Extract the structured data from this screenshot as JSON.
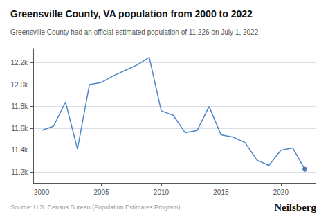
{
  "chart_data": {
    "type": "line",
    "title": "Greensville County, VA population from 2000 to 2022",
    "subtitle": "Greensville County had an official estimated population of 11,226 on July 1, 2022",
    "annotations": [
      "Source: U.S. Census Bureau (Population Estimates Program)",
      "Neilsberg"
    ],
    "x": [
      2000,
      2001,
      2002,
      2003,
      2004,
      2005,
      2006,
      2007,
      2008,
      2009,
      2010,
      2011,
      2012,
      2013,
      2014,
      2015,
      2016,
      2017,
      2018,
      2019,
      2020,
      2021,
      2022
    ],
    "series": [
      {
        "type": "line",
        "color": "#4a86c8",
        "values": [
          11580,
          11620,
          11840,
          11410,
          12000,
          12020,
          12080,
          12130,
          12180,
          12250,
          11760,
          11720,
          11560,
          11580,
          11800,
          11540,
          11520,
          11470,
          11310,
          11260,
          11400,
          11420,
          11226
        ]
      },
      {
        "type": "scatter",
        "color": "#2f5fa5",
        "marker": "circle",
        "x": [
          2022
        ],
        "values": [
          11226
        ]
      }
    ],
    "xlim": [
      1999.3,
      2022.9
    ],
    "xticks": [
      2000,
      2005,
      2010,
      2015,
      2020
    ],
    "ylim": [
      11100,
      12330
    ],
    "yticks": [
      {
        "value": 11200,
        "label": "11.2k"
      },
      {
        "value": 11400,
        "label": "11.4k"
      },
      {
        "value": 11600,
        "label": "11.6k"
      },
      {
        "value": 11800,
        "label": "11.8k"
      },
      {
        "value": 12000,
        "label": "12.0k"
      },
      {
        "value": 12200,
        "label": "12.2k"
      }
    ],
    "grid": true
  }
}
